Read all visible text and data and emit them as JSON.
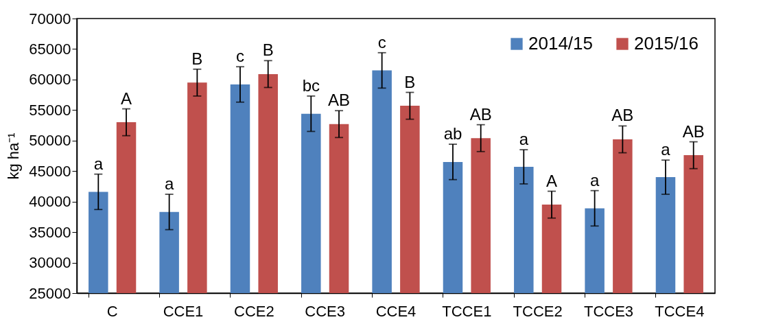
{
  "chart_data": {
    "type": "bar",
    "ylabel": "kg ha⁻¹",
    "categories": [
      "C",
      "CCE1",
      "CCE2",
      "CCE3",
      "CCE4",
      "TCCE1",
      "TCCE2",
      "TCCE3",
      "TCCE4"
    ],
    "series": [
      {
        "name": "2014/15",
        "color": "#4f81bd",
        "values": [
          41600,
          38300,
          59200,
          54400,
          61500,
          46500,
          45700,
          38900,
          44000
        ],
        "errors": [
          2900,
          2900,
          2900,
          2900,
          2900,
          2900,
          2800,
          2900,
          2800
        ],
        "value_labels": [
          "a",
          "a",
          "c",
          "bc",
          "c",
          "ab",
          "a",
          "a",
          "a"
        ]
      },
      {
        "name": "2015/16",
        "color": "#c0504d",
        "values": [
          53000,
          59500,
          60900,
          52700,
          55700,
          50400,
          39500,
          50200,
          47600
        ],
        "errors": [
          2200,
          2200,
          2200,
          2200,
          2200,
          2200,
          2200,
          2200,
          2200
        ],
        "value_labels": [
          "A",
          "B",
          "B",
          "AB",
          "B",
          "AB",
          "A",
          "AB",
          "AB"
        ]
      }
    ],
    "ylim": [
      25000,
      70000
    ],
    "yticks": [
      25000,
      30000,
      35000,
      40000,
      45000,
      50000,
      55000,
      60000,
      65000,
      70000
    ],
    "grid": false,
    "legend": "top right"
  }
}
